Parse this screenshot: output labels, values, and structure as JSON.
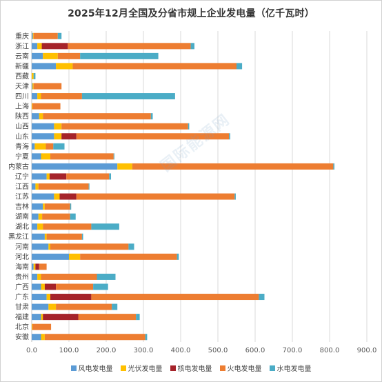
{
  "chart_data": {
    "type": "bar",
    "orientation": "horizontal",
    "stacked": true,
    "title": "2025年12月全国及分省市规上企业发电量（亿千瓦时）",
    "xlim": [
      0,
      900
    ],
    "x_ticks": [
      "0.0",
      "100.0",
      "200.0",
      "300.0",
      "400.0",
      "500.0",
      "600.0",
      "700.0",
      "800.0",
      "900.0"
    ],
    "grid": true,
    "legend_position": "bottom",
    "categories": [
      "重庆",
      "浙江",
      "云南",
      "新疆",
      "西藏",
      "天津",
      "四川",
      "上海",
      "陕西",
      "山西",
      "山东",
      "青海",
      "宁夏",
      "内蒙古",
      "辽宁",
      "江西",
      "江苏",
      "吉林",
      "湖南",
      "湖北",
      "黑龙江",
      "河南",
      "河北",
      "海南",
      "贵州",
      "广西",
      "广东",
      "甘肃",
      "福建",
      "北京",
      "安徽"
    ],
    "series": [
      {
        "name": "风电发电量",
        "color": "#5b9bd5",
        "values": [
          3,
          15,
          30,
          65,
          0,
          2,
          15,
          0,
          20,
          60,
          60,
          8,
          25,
          230,
          40,
          10,
          60,
          30,
          18,
          15,
          35,
          45,
          100,
          5,
          15,
          25,
          40,
          45,
          25,
          0,
          25
        ]
      },
      {
        "name": "光伏发电量",
        "color": "#ffc000",
        "values": [
          2,
          12,
          40,
          45,
          5,
          3,
          10,
          2,
          10,
          20,
          20,
          30,
          25,
          40,
          8,
          8,
          15,
          5,
          10,
          15,
          5,
          5,
          30,
          5,
          10,
          10,
          10,
          20,
          5,
          2,
          10
        ]
      },
      {
        "name": "核电发电量",
        "color": "#a5232a",
        "values": [
          0,
          70,
          0,
          0,
          0,
          0,
          0,
          0,
          0,
          0,
          40,
          0,
          0,
          0,
          45,
          0,
          45,
          0,
          0,
          0,
          0,
          0,
          0,
          10,
          0,
          30,
          110,
          0,
          95,
          0,
          0
        ]
      },
      {
        "name": "火电发电量",
        "color": "#ed7d31",
        "values": [
          65,
          330,
          60,
          440,
          0,
          75,
          110,
          75,
          290,
          340,
          410,
          20,
          170,
          540,
          115,
          135,
          425,
          68,
          75,
          130,
          95,
          210,
          260,
          20,
          150,
          100,
          450,
          150,
          155,
          50,
          270
        ]
      },
      {
        "name": "水电发电量",
        "color": "#4bacc6",
        "values": [
          10,
          10,
          210,
          15,
          5,
          0,
          250,
          0,
          5,
          3,
          3,
          30,
          2,
          3,
          5,
          2,
          3,
          3,
          15,
          75,
          3,
          15,
          5,
          0,
          50,
          40,
          15,
          15,
          10,
          0,
          5
        ]
      }
    ]
  },
  "watermark": "国际能源网"
}
